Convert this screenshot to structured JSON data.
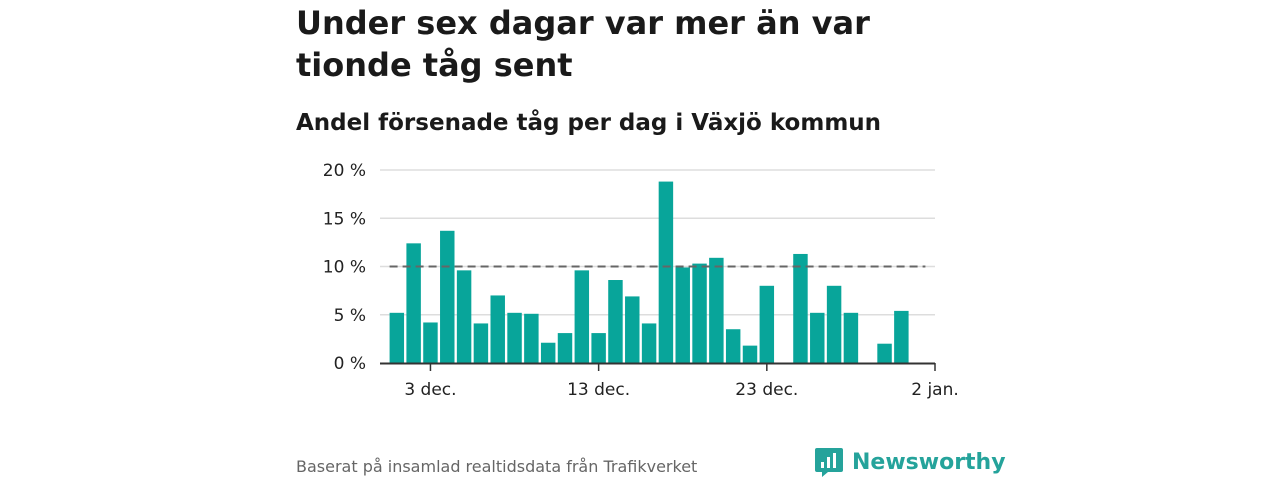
{
  "header": {
    "title": "Under sex dagar var mer än var tionde tåg sent",
    "subtitle": "Andel försenade tåg per dag i Växjö kommun"
  },
  "footer": {
    "source": "Baserat på insamlad realtidsdata från Trafikverket",
    "brand": "Newsworthy",
    "brand_icon": "newsworthy-logo-icon"
  },
  "colors": {
    "bar": "#08a59a",
    "reference_line": "#666666",
    "grid": "#dddddd",
    "brand": "#25a39b"
  },
  "chart_data": {
    "type": "bar",
    "x": [
      "2023-12-01",
      "2023-12-02",
      "2023-12-03",
      "2023-12-04",
      "2023-12-05",
      "2023-12-06",
      "2023-12-07",
      "2023-12-08",
      "2023-12-09",
      "2023-12-10",
      "2023-12-11",
      "2023-12-12",
      "2023-12-13",
      "2023-12-14",
      "2023-12-15",
      "2023-12-16",
      "2023-12-17",
      "2023-12-18",
      "2023-12-19",
      "2023-12-20",
      "2023-12-21",
      "2023-12-22",
      "2023-12-23",
      "2023-12-24",
      "2023-12-25",
      "2023-12-26",
      "2023-12-27",
      "2023-12-28",
      "2023-12-29",
      "2023-12-30",
      "2023-12-31",
      "2024-01-01"
    ],
    "values": [
      5.2,
      12.4,
      4.2,
      13.7,
      9.6,
      4.1,
      7.0,
      5.2,
      5.1,
      2.1,
      3.1,
      9.6,
      3.1,
      8.6,
      6.9,
      4.1,
      18.8,
      9.9,
      10.3,
      10.9,
      3.5,
      1.8,
      8.0,
      null,
      11.3,
      5.2,
      8.0,
      5.2,
      null,
      2.0,
      5.4,
      null
    ],
    "reference_line": 10,
    "ylim": [
      0,
      20
    ],
    "yticks": [
      0,
      5,
      10,
      15,
      20
    ],
    "ytick_labels": [
      "0 %",
      "5 %",
      "10 %",
      "15 %",
      "20 %"
    ],
    "xtick_dates": [
      "2023-12-03",
      "2023-12-13",
      "2023-12-23",
      "2024-01-02"
    ],
    "xtick_labels": [
      "3 dec.",
      "13 dec.",
      "23 dec.",
      "2 jan."
    ],
    "xlim": [
      "2023-11-30",
      "2024-01-02"
    ],
    "grid": "horizontal",
    "xlabel": "",
    "ylabel": ""
  }
}
